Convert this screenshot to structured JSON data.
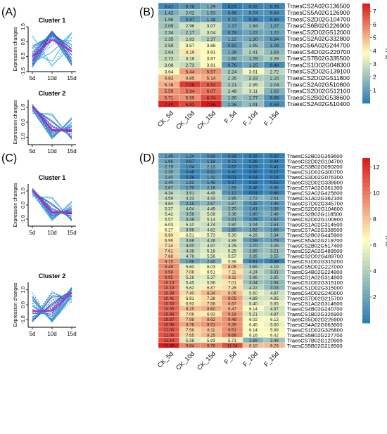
{
  "panels": {
    "A": {
      "label": "(A)",
      "ylabel": "Expression changes",
      "xticks": [
        "5d",
        "10d",
        "15d"
      ],
      "clusters": [
        {
          "title": "Cluster 1",
          "yticks": [
            "1.5",
            "0.5",
            "-0.5",
            "-1.5"
          ],
          "yrange": [
            -1.5,
            1.5
          ],
          "lines": [
            [
              -1.1,
              1.1,
              0.0
            ],
            [
              -1.0,
              1.0,
              0.0
            ],
            [
              -0.9,
              1.1,
              -0.2
            ],
            [
              -0.8,
              1.2,
              -0.4
            ],
            [
              -0.6,
              1.2,
              -0.6
            ],
            [
              -0.4,
              1.2,
              -0.8
            ],
            [
              -0.2,
              1.1,
              -0.9
            ],
            [
              0.0,
              1.0,
              -1.0
            ],
            [
              0.2,
              0.9,
              -1.1
            ],
            [
              -1.2,
              0.9,
              0.3
            ],
            [
              -1.0,
              0.8,
              0.2
            ],
            [
              -0.7,
              1.1,
              -0.4
            ],
            [
              -0.5,
              1.15,
              -0.65
            ],
            [
              -0.3,
              1.1,
              -0.8
            ],
            [
              0.1,
              0.95,
              -1.05
            ],
            [
              -1.15,
              0.6,
              0.55
            ],
            [
              -1.1,
              0.3,
              0.8
            ],
            [
              -0.9,
              -0.2,
              1.1
            ],
            [
              -0.3,
              -0.8,
              1.1
            ],
            [
              0.4,
              -1.15,
              0.75
            ],
            [
              0.9,
              -1.1,
              0.2
            ]
          ]
        },
        {
          "title": "Cluster 2",
          "yticks": [
            "1.0",
            "0.0",
            "-1.0"
          ],
          "yrange": [
            -1.5,
            1.5
          ],
          "lines": [
            [
              1.15,
              -0.55,
              -0.6
            ],
            [
              1.15,
              -0.6,
              -0.55
            ],
            [
              1.15,
              -0.5,
              -0.65
            ],
            [
              1.1,
              -0.3,
              -0.8
            ],
            [
              1.1,
              -0.2,
              -0.9
            ],
            [
              1.0,
              0.0,
              -1.0
            ],
            [
              0.95,
              0.1,
              -1.05
            ],
            [
              1.15,
              -0.7,
              -0.45
            ],
            [
              1.1,
              -0.8,
              -0.3
            ],
            [
              1.1,
              -0.9,
              -0.2
            ],
            [
              1.0,
              -1.0,
              0.0
            ],
            [
              0.9,
              -1.1,
              0.2
            ],
            [
              0.8,
              -1.1,
              0.3
            ],
            [
              1.2,
              -0.4,
              -0.8
            ],
            [
              1.05,
              -0.95,
              -0.1
            ],
            [
              1.15,
              -0.65,
              -0.5
            ],
            [
              1.12,
              -0.75,
              -0.37
            ],
            [
              0.7,
              0.45,
              -1.15
            ],
            [
              0.6,
              0.55,
              -1.15
            ],
            [
              1.1,
              -1.0,
              -0.1
            ]
          ]
        }
      ]
    },
    "C": {
      "label": "(C)",
      "ylabel": "Expression changes",
      "xticks": [
        "5d",
        "10d",
        "15d"
      ],
      "clusters": [
        {
          "title": "Cluster 1",
          "yticks": [
            "1.0",
            "0.0",
            "-1.0"
          ],
          "yrange": [
            -1.5,
            1.5
          ],
          "lines": [
            [
              1.15,
              -0.55,
              -0.6
            ],
            [
              1.15,
              -0.6,
              -0.55
            ],
            [
              1.15,
              -0.5,
              -0.65
            ],
            [
              1.1,
              -0.3,
              -0.8
            ],
            [
              1.1,
              -0.2,
              -0.9
            ],
            [
              1.0,
              0.0,
              -1.0
            ],
            [
              0.95,
              0.1,
              -1.05
            ],
            [
              1.15,
              -0.7,
              -0.45
            ],
            [
              1.1,
              -0.8,
              -0.3
            ],
            [
              1.1,
              -0.9,
              -0.2
            ],
            [
              1.0,
              -1.0,
              0.0
            ],
            [
              0.9,
              -1.1,
              0.2
            ],
            [
              1.2,
              -0.4,
              -0.8
            ],
            [
              1.05,
              -0.95,
              -0.1
            ],
            [
              1.15,
              -0.65,
              -0.5
            ],
            [
              1.12,
              -0.75,
              -0.37
            ],
            [
              0.7,
              0.45,
              -1.15
            ],
            [
              0.6,
              0.55,
              -1.15
            ],
            [
              1.1,
              -1.0,
              -0.1
            ],
            [
              0.8,
              -1.1,
              0.3
            ]
          ]
        },
        {
          "title": "Cluster 2",
          "yticks": [
            "1.0",
            "0.0",
            "-1.0"
          ],
          "yrange": [
            -1.5,
            1.5
          ],
          "lines": [
            [
              -1.15,
              0.6,
              0.55
            ],
            [
              -1.1,
              0.3,
              0.8
            ],
            [
              -1.1,
              0.1,
              1.0
            ],
            [
              -1.0,
              0.0,
              1.0
            ],
            [
              -0.9,
              -0.2,
              1.1
            ],
            [
              -0.8,
              -0.3,
              1.1
            ],
            [
              -0.6,
              -0.55,
              1.15
            ],
            [
              -0.5,
              -0.65,
              1.15
            ],
            [
              -0.3,
              -0.8,
              1.1
            ],
            [
              -0.1,
              -0.95,
              1.05
            ],
            [
              0.1,
              -1.05,
              0.95
            ],
            [
              0.3,
              -1.1,
              0.8
            ],
            [
              0.5,
              -1.15,
              0.65
            ],
            [
              0.8,
              -1.1,
              0.3
            ],
            [
              0.6,
              -1.15,
              0.55
            ],
            [
              -1.15,
              0.8,
              0.35
            ],
            [
              -1.05,
              0.9,
              0.15
            ],
            [
              -1.1,
              0.5,
              0.6
            ],
            [
              0.0,
              -1.0,
              1.0
            ],
            [
              -0.4,
              -0.7,
              1.1
            ],
            [
              -0.95,
              -0.1,
              1.05
            ],
            [
              0.4,
              -1.15,
              0.75
            ]
          ]
        }
      ]
    }
  },
  "chart_data": [
    {
      "type": "heatmap",
      "panel_label": "(B)",
      "columns": [
        "CK_5d",
        "CK_10d",
        "CK_15d",
        "F_5d",
        "F_10d",
        "F_15d"
      ],
      "rows": [
        "TraesCS2A02G136500",
        "TraesCS5A02G126900",
        "TraesCS2D02G104700",
        "TraesCS6B02G226900",
        "TraesCS2D02G512000",
        "TraesCS2A02G332800",
        "TraesCS6A02G244700",
        "TraesCS4D02G220700",
        "TraesCS7B02G335500",
        "TraesCS1D02G048300",
        "TraesCS2D02G139100",
        "TraesCS2D02G511800",
        "TraesCS2A02G510800",
        "TraesCS2D02G512100",
        "TraesCS2B02G538600",
        "TraesCS2A02G510400"
      ],
      "values": [
        [
          "0.41",
          "0.78",
          "1.29",
          "0.07",
          "0.32",
          "0.35"
        ],
        [
          "1.42",
          "2.02",
          "1.53",
          "0.66",
          "0.74",
          "0.64"
        ],
        [
          "1.96",
          "0.97",
          "1.18",
          "0.72",
          "0.38",
          "0.44"
        ],
        [
          "2.09",
          "2.96",
          "3.07",
          "1.17",
          "1.84",
          "1.27"
        ],
        [
          "2.34",
          "2.17",
          "3.04",
          "0.78",
          "1.22",
          "1.22"
        ],
        [
          "2.35",
          "2.83",
          "2.37",
          "1.22",
          "1.30",
          "0.94"
        ],
        [
          "2.59",
          "3.57",
          "3.68",
          "0.92",
          "1.95",
          "1.09"
        ],
        [
          "2.64",
          "4.19",
          "3.91",
          "1.38",
          "2.41",
          "1.83"
        ],
        [
          "2.72",
          "3.16",
          "3.87",
          "1.60",
          "1.78",
          "2.28"
        ],
        [
          "3.08",
          "2.73",
          "3.91",
          "0.76",
          "1.25",
          "0.48"
        ],
        [
          "3.64",
          "5.44",
          "5.57",
          "2.24",
          "3.61",
          "2.72"
        ],
        [
          "4.82",
          "4.85",
          "5.14",
          "2.35",
          "2.33",
          "2.15"
        ],
        [
          "5.16",
          "7.06",
          "6.53",
          "2.21",
          "2.95",
          "2.04"
        ],
        [
          "5.59",
          "5.94",
          "6.07",
          "2.48",
          "3.11",
          "1.62"
        ],
        [
          "5.71",
          "5.59",
          "6.74",
          "1.90",
          "1.77",
          "0.69"
        ],
        [
          "7.40",
          "6.83",
          "7.56",
          "1.36",
          "1.91",
          "0.59"
        ]
      ],
      "legend": {
        "title": "TPM",
        "ticks": [
          7,
          6,
          5,
          4,
          3,
          2,
          1
        ],
        "range": [
          0,
          7.6
        ]
      }
    },
    {
      "type": "heatmap",
      "panel_label": "(D)",
      "columns": [
        "CK_5d",
        "CK_10d",
        "CK_15d",
        "F_5d",
        "F_10d",
        "F_15d"
      ],
      "rows": [
        "TraesCS2B02G359600",
        "TraesCS2D02G104700",
        "TraesCS3B02G090200",
        "TraesCS1D02G300700",
        "TraesCS3D02G076300",
        "TraesCS2D02G339900",
        "TraesCS7A02G361300",
        "TraesCS2A02G425600",
        "TraesCS1A02G362100",
        "TraesCS7D02G345700",
        "TraesCS2D02G104600",
        "TraesCS2B02G118500",
        "TraesCS2D02G100900",
        "TraesCS1A02G314500",
        "TraesCS7A02G338500",
        "TraesCS2B02G445900",
        "TraesCS5A02G219700",
        "TraesCS2B02G517400",
        "TraesCS2A02G489500",
        "TraesCS2D02G489700",
        "TraesCS1D02G315200",
        "TraesCS5D02G227000",
        "TraesCS4B02G224800",
        "TraesCS1A02G314800",
        "TraesCS1D02G315100",
        "TraesCS1D02G315000",
        "TraesCS4D02G240000",
        "TraesCS7D02G215700",
        "TraesCS1A02G314600",
        "TraesCS4B02G240700",
        "TraesCS1B02G326900",
        "TraesCS5D02G226900",
        "TraesCS4A02G063600",
        "TraesCS1D02G326800",
        "TraesCS5B02G227700",
        "TraesCS7B02G120900",
        "TraesCS5B02G218500"
      ],
      "values": [
        [
          "1.45",
          "1.24",
          "0.94",
          "0.34",
          "0.15",
          "0.20"
        ],
        [
          "1.96",
          "0.97",
          "1.18",
          "0.72",
          "0.38",
          "0.44"
        ],
        [
          "2.19",
          "1.04",
          "2.13",
          "0.67",
          "0.23",
          "0.41"
        ],
        [
          "2.35",
          "0.48",
          "0.91",
          "0.40",
          "0.06",
          "0.17"
        ],
        [
          "2.40",
          "0.38",
          "1.42",
          "0.01",
          "0.04",
          "0.16"
        ],
        [
          "2.40",
          "1.83",
          "1.45",
          "0.37",
          "0.19",
          "0.15"
        ],
        [
          "2.67",
          "1.70",
          "2.18",
          "1.59",
          "0.48",
          "0.96"
        ],
        [
          "4.34",
          "3.91",
          "4.49",
          "1.12",
          "0.01",
          "0.46"
        ],
        [
          "4.59",
          "4.33",
          "4.43",
          "2.95",
          "2.72",
          "2.51"
        ],
        [
          "4.84",
          "2.15",
          "2.87",
          "2.87",
          "1.11",
          "1.46"
        ],
        [
          "5.37",
          "4.04",
          "4.49",
          "2.70",
          "1.41",
          "1.56"
        ],
        [
          "5.42",
          "3.58",
          "5.08",
          "3.36",
          "1.80",
          "2.48"
        ],
        [
          "5.57",
          "3.49",
          "5.14",
          "2.41",
          "1.09",
          "1.62"
        ],
        [
          "6.03",
          "5.10",
          "4.74",
          "3.80",
          "3.04",
          "2.51"
        ],
        [
          "6.27",
          "3.96",
          "4.82",
          "1.80",
          "1.92",
          "1.66"
        ],
        [
          "6.90",
          "6.51",
          "5.73",
          "5.30",
          "4.29",
          "3.34"
        ],
        [
          "6.96",
          "3.88",
          "4.26",
          "4.89",
          "1.59",
          "1.78"
        ],
        [
          "7.24",
          "4.00",
          "4.97",
          "4.76",
          "2.70",
          "3.29"
        ],
        [
          "7.61",
          "4.38",
          "5.18",
          "5.25",
          "2.89",
          "3.21"
        ],
        [
          "7.68",
          "4.76",
          "5.56",
          "5.57",
          "3.35",
          "3.55"
        ],
        [
          "9.15",
          "1.98",
          "2.40",
          "5.98",
          "0.81",
          "0.39"
        ],
        [
          "9.49",
          "5.60",
          "6.03",
          "8.05",
          "3.69",
          "4.19"
        ],
        [
          "9.58",
          "7.06",
          "6.51",
          "7.11",
          "4.24",
          "3.31"
        ],
        [
          "9.95",
          "5.26",
          "5.37",
          "8.11",
          "3.96",
          "3.95"
        ],
        [
          "10.13",
          "5.45",
          "5.56",
          "7.01",
          "3.34",
          "2.94"
        ],
        [
          "10.19",
          "5.62",
          "6.87",
          "7.26",
          "4.22",
          "3.03"
        ],
        [
          "10.39",
          "7.40",
          "8.34",
          "8.06",
          "5.60",
          "4.87"
        ],
        [
          "10.41",
          "6.91",
          "7.38",
          "9.05",
          "4.89",
          "4.95"
        ],
        [
          "10.53",
          "6.93",
          "7.56",
          "8.67",
          "5.40",
          "5.65"
        ],
        [
          "10.55",
          "8.25",
          "8.60",
          "8.47",
          "6.14",
          "4.97"
        ],
        [
          "10.68",
          "7.06",
          "6.93",
          "9.18",
          "5.21",
          "4.87"
        ],
        [
          "10.87",
          "7.98",
          "8.62",
          "9.48",
          "6.02",
          "6.13"
        ],
        [
          "10.96",
          "8.78",
          "9.31",
          "9.39",
          "6.45",
          "5.60"
        ],
        [
          "11.00",
          "7.56",
          "8.11",
          "9.51",
          "6.14",
          "5.99"
        ],
        [
          "11.04",
          "7.55",
          "8.25",
          "9.66",
          "6.16",
          "6.42"
        ],
        [
          "11.14",
          "5.38",
          "5.93",
          "5.71",
          "2.69",
          "3.48"
        ],
        [
          "12.63",
          "9.64",
          "9.76",
          "11.24",
          "8.10",
          "8.26"
        ]
      ],
      "legend": {
        "title": "TPM",
        "ticks": [
          12,
          10,
          8,
          6,
          4,
          2
        ],
        "range": [
          0,
          12.7
        ]
      }
    }
  ],
  "colors": {
    "low": "#2c7bb6",
    "mid": "#ffffbf",
    "high": "#d7191c",
    "line_dark": "#1f2aa8",
    "line_light": "#34b4e0",
    "line_magenta": "#c01ec8"
  }
}
